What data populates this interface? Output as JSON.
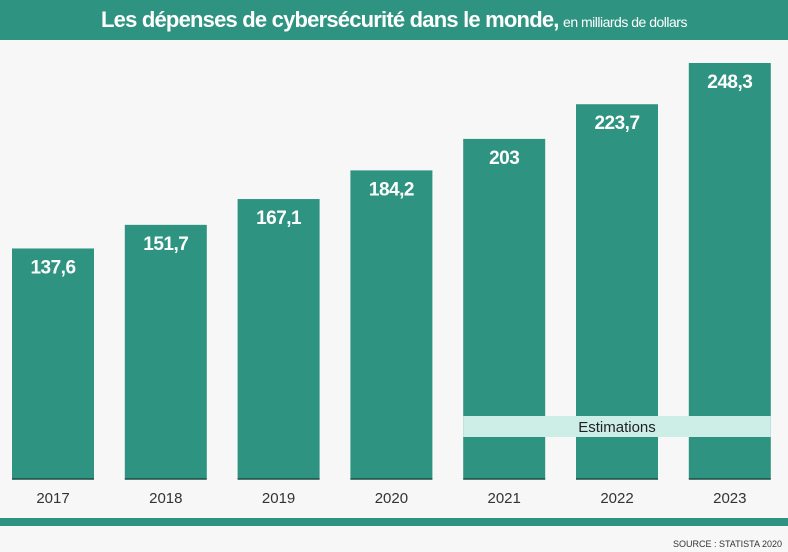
{
  "chart_data": {
    "type": "bar",
    "title": "Les dépenses de cybersécurité dans le monde,",
    "subtitle": "en milliards de dollars",
    "categories": [
      "2017",
      "2018",
      "2019",
      "2020",
      "2021",
      "2022",
      "2023"
    ],
    "values": [
      137.6,
      151.7,
      167.1,
      184.2,
      203,
      223.7,
      248.3
    ],
    "value_labels": [
      "137,6",
      "151,7",
      "167,1",
      "184,2",
      "203",
      "223,7",
      "248,3"
    ],
    "annotation": {
      "label": "Estimations",
      "categories": [
        "2021",
        "2022",
        "2023"
      ]
    },
    "grid": false,
    "colors": {
      "bar": "#2e9381",
      "annotation": "#cdeee7",
      "header": "#2e9381"
    }
  },
  "source": "SOURCE : STATISTA 2020"
}
